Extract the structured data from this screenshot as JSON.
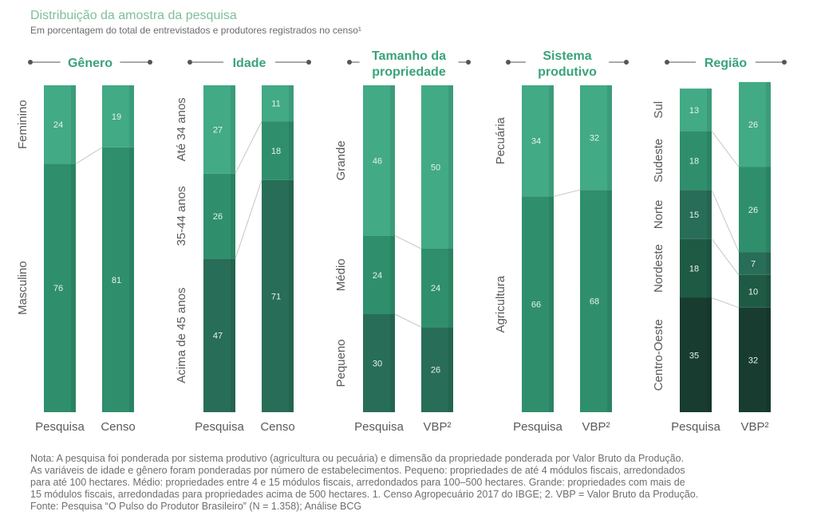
{
  "header": {
    "title": "Distribuição da amostra da pesquisa",
    "subtitle": "Em porcentagem do total de entrevistados e produtores registrados no censo¹"
  },
  "colors": {
    "header": "#3aa37a",
    "seg_light": "#42aa85",
    "seg_mid": "#2f8f6c",
    "seg_dark": "#286d57",
    "seg_darker": "#1f5a45",
    "seg_darkest": "#193c30",
    "connector": "#c6c6c6",
    "value_text": "#e6f3ec"
  },
  "chart_data": [
    {
      "type": "bar",
      "stacked": true,
      "title": "Gênero",
      "categories": [
        "Pesquisa",
        "Censo"
      ],
      "series": [
        {
          "name": "Masculino",
          "values": [
            76,
            81
          ],
          "color": "seg_mid"
        },
        {
          "name": "Feminino",
          "values": [
            24,
            19
          ],
          "color": "seg_light"
        }
      ]
    },
    {
      "type": "bar",
      "stacked": true,
      "title": "Idade",
      "categories": [
        "Pesquisa",
        "Censo"
      ],
      "series": [
        {
          "name": "Acima de 45 anos",
          "values": [
            47,
            71
          ],
          "color": "seg_dark"
        },
        {
          "name": "35-44 anos",
          "values": [
            26,
            18
          ],
          "color": "seg_mid"
        },
        {
          "name": "Até 34 anos",
          "values": [
            27,
            11
          ],
          "color": "seg_light"
        }
      ]
    },
    {
      "type": "bar",
      "stacked": true,
      "title": "Tamanho da propriedade",
      "categories": [
        "Pesquisa",
        "VBP²"
      ],
      "series": [
        {
          "name": "Pequeno",
          "values": [
            30,
            26
          ],
          "color": "seg_dark"
        },
        {
          "name": "Médio",
          "values": [
            24,
            24
          ],
          "color": "seg_mid"
        },
        {
          "name": "Grande",
          "values": [
            46,
            50
          ],
          "color": "seg_light"
        }
      ]
    },
    {
      "type": "bar",
      "stacked": true,
      "title": "Sistema produtivo",
      "categories": [
        "Pesquisa",
        "VBP²"
      ],
      "series": [
        {
          "name": "Agricultura",
          "values": [
            66,
            68
          ],
          "color": "seg_mid"
        },
        {
          "name": "Pecuária",
          "values": [
            34,
            32
          ],
          "color": "seg_light"
        }
      ]
    },
    {
      "type": "bar",
      "stacked": true,
      "title": "Região",
      "categories": [
        "Pesquisa",
        "VBP²"
      ],
      "series": [
        {
          "name": "Centro-Oeste",
          "values": [
            35,
            32
          ],
          "color": "seg_darkest"
        },
        {
          "name": "Nordeste",
          "values": [
            18,
            10
          ],
          "color": "seg_darker"
        },
        {
          "name": "Norte",
          "values": [
            15,
            7
          ],
          "color": "seg_dark"
        },
        {
          "name": "Sudeste",
          "values": [
            18,
            26
          ],
          "color": "seg_mid"
        },
        {
          "name": "Sul",
          "values": [
            13,
            26
          ],
          "color": "seg_light"
        }
      ]
    }
  ],
  "notes": [
    "Nota: A pesquisa foi ponderada por sistema produtivo (agricultura ou pecuária) e dimensão da propriedade ponderada por Valor Bruto da Produção.",
    "As variáveis de idade e gênero foram ponderadas por número de estabelecimentos. Pequeno: propriedades de até 4 módulos fiscais, arredondados",
    "para até 100 hectares. Médio: propriedades entre 4 e 15 módulos fiscais, arredondados para 100–500 hectares. Grande: propriedades com mais de",
    "15 módulos fiscais, arredondadas para propriedades acima de 500 hectares. 1. Censo Agropecuário 2017 do IBGE; 2. VBP = Valor Bruto da Produção.",
    "Fonte: Pesquisa “O Pulso do Produtor Brasileiro” (N = 1.358); Análise BCG"
  ]
}
